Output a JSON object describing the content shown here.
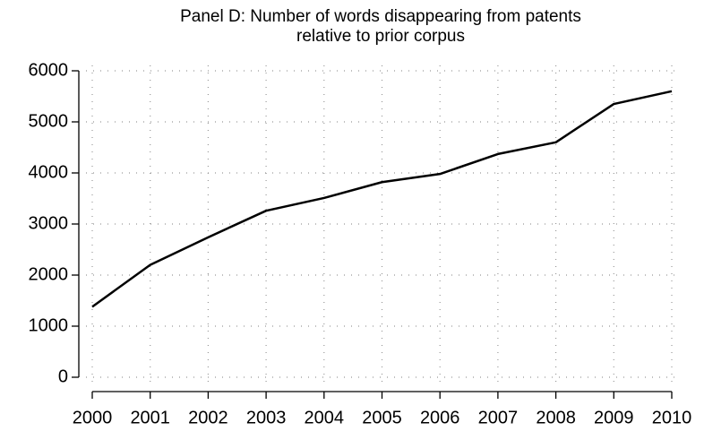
{
  "chart_data": {
    "type": "line",
    "title": [
      "Panel D: Number of words disappearing from patents",
      "relative to prior corpus"
    ],
    "x": [
      2000,
      2001,
      2002,
      2003,
      2004,
      2005,
      2006,
      2007,
      2008,
      2009,
      2010
    ],
    "series": [
      {
        "color": "#000000",
        "values": [
          1380,
          2200,
          2740,
          3260,
          3510,
          3820,
          3980,
          4370,
          4600,
          5350,
          5600
        ]
      }
    ],
    "xlim": [
      2000,
      2010
    ],
    "xticks": [
      2000,
      2001,
      2002,
      2003,
      2004,
      2005,
      2006,
      2007,
      2008,
      2009,
      2010
    ],
    "ylim": [
      0,
      6000
    ],
    "yticks": [
      0,
      1000,
      2000,
      3000,
      4000,
      5000,
      6000
    ],
    "grid": true
  }
}
